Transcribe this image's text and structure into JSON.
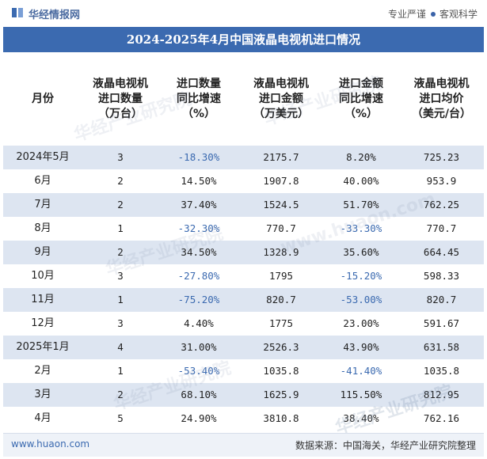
{
  "header": {
    "brand": "华经情报网",
    "tagline_left": "专业严谨",
    "tagline_right": "客观科学"
  },
  "title": "2024-2025年4月中国液晶电视机进口情况",
  "columns": [
    "月份",
    "液晶电视机\n进口数量\n（万台）",
    "进口数量\n同比增速\n（%）",
    "液晶电视机\n进口金额\n（万美元）",
    "进口金额\n同比增速\n（%）",
    "液晶电视机\n进口均价\n（美元/台）"
  ],
  "rows": [
    [
      "2024年5月",
      "3",
      "-18.30%",
      "2175.7",
      "8.20%",
      "725.23"
    ],
    [
      "6月",
      "2",
      "14.50%",
      "1907.8",
      "40.00%",
      "953.9"
    ],
    [
      "7月",
      "2",
      "37.40%",
      "1524.5",
      "51.70%",
      "762.25"
    ],
    [
      "8月",
      "1",
      "-32.30%",
      "770.7",
      "-33.30%",
      "770.7"
    ],
    [
      "9月",
      "2",
      "34.50%",
      "1328.9",
      "35.60%",
      "664.45"
    ],
    [
      "10月",
      "3",
      "-27.80%",
      "1795",
      "-15.20%",
      "598.33"
    ],
    [
      "11月",
      "1",
      "-75.20%",
      "820.7",
      "-53.00%",
      "820.7"
    ],
    [
      "12月",
      "3",
      "4.40%",
      "1775",
      "23.00%",
      "591.67"
    ],
    [
      "2025年1月",
      "4",
      "31.00%",
      "2526.3",
      "43.90%",
      "631.58"
    ],
    [
      "2月",
      "1",
      "-53.40%",
      "1035.8",
      "-41.40%",
      "1035.8"
    ],
    [
      "3月",
      "2",
      "68.10%",
      "1625.9",
      "115.50%",
      "812.95"
    ],
    [
      "4月",
      "5",
      "24.90%",
      "3810.8",
      "38.40%",
      "762.16"
    ]
  ],
  "footer": {
    "site": "www.huaon.com",
    "source": "数据来源：中国海关，华经产业研究院整理"
  },
  "watermarks": [
    "华经产业研究院",
    "www.huaon.com"
  ],
  "colors": {
    "title_bg": "#3b6ab0",
    "row_alt_bg": "#dde5f1",
    "negative_text": "#3b6ab0"
  }
}
